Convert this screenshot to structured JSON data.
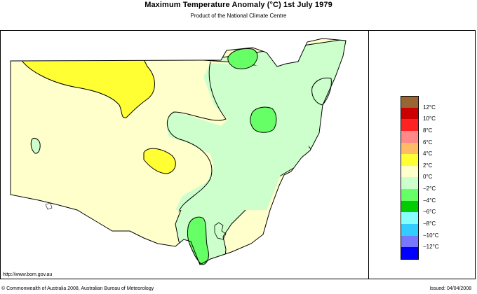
{
  "header": {
    "title": "Maximum Temperature Anomaly (°C)  1st July 1979",
    "subtitle": "Product of the National Climate Centre"
  },
  "footer": {
    "url": "http://www.bom.gov.au",
    "copyright": "© Commonwealth of Australia 2008, Australian Bureau of Meteorology",
    "issued": "Issued: 04/04/2008"
  },
  "legend": {
    "items": [
      {
        "label": "",
        "color": "#996633"
      },
      {
        "label": "12°C",
        "color": "#cc0000"
      },
      {
        "label": "10°C",
        "color": "#ff2222"
      },
      {
        "label": "8°C",
        "color": "#ff8888"
      },
      {
        "label": "6°C",
        "color": "#ffbb66"
      },
      {
        "label": "4°C",
        "color": "#ffff33"
      },
      {
        "label": "2°C",
        "color": "#ffffcc"
      },
      {
        "label": "0°C",
        "color": "#ccffcc"
      },
      {
        "label": "−2°C",
        "color": "#66ff66"
      },
      {
        "label": "−4°C",
        "color": "#00cc00"
      },
      {
        "label": "−6°C",
        "color": "#88ffff"
      },
      {
        "label": "−8°C",
        "color": "#33ccff"
      },
      {
        "label": "−10°C",
        "color": "#7777ff"
      },
      {
        "label": "−12°C",
        "color": "#0000ff"
      }
    ]
  },
  "map": {
    "region": "New South Wales",
    "fill_colors": {
      "warm_2_4": "#ffff33",
      "warm_0_2": "#ffffcc",
      "cool_0_m2": "#ccffcc",
      "cool_m2_m4": "#66ff66"
    }
  }
}
